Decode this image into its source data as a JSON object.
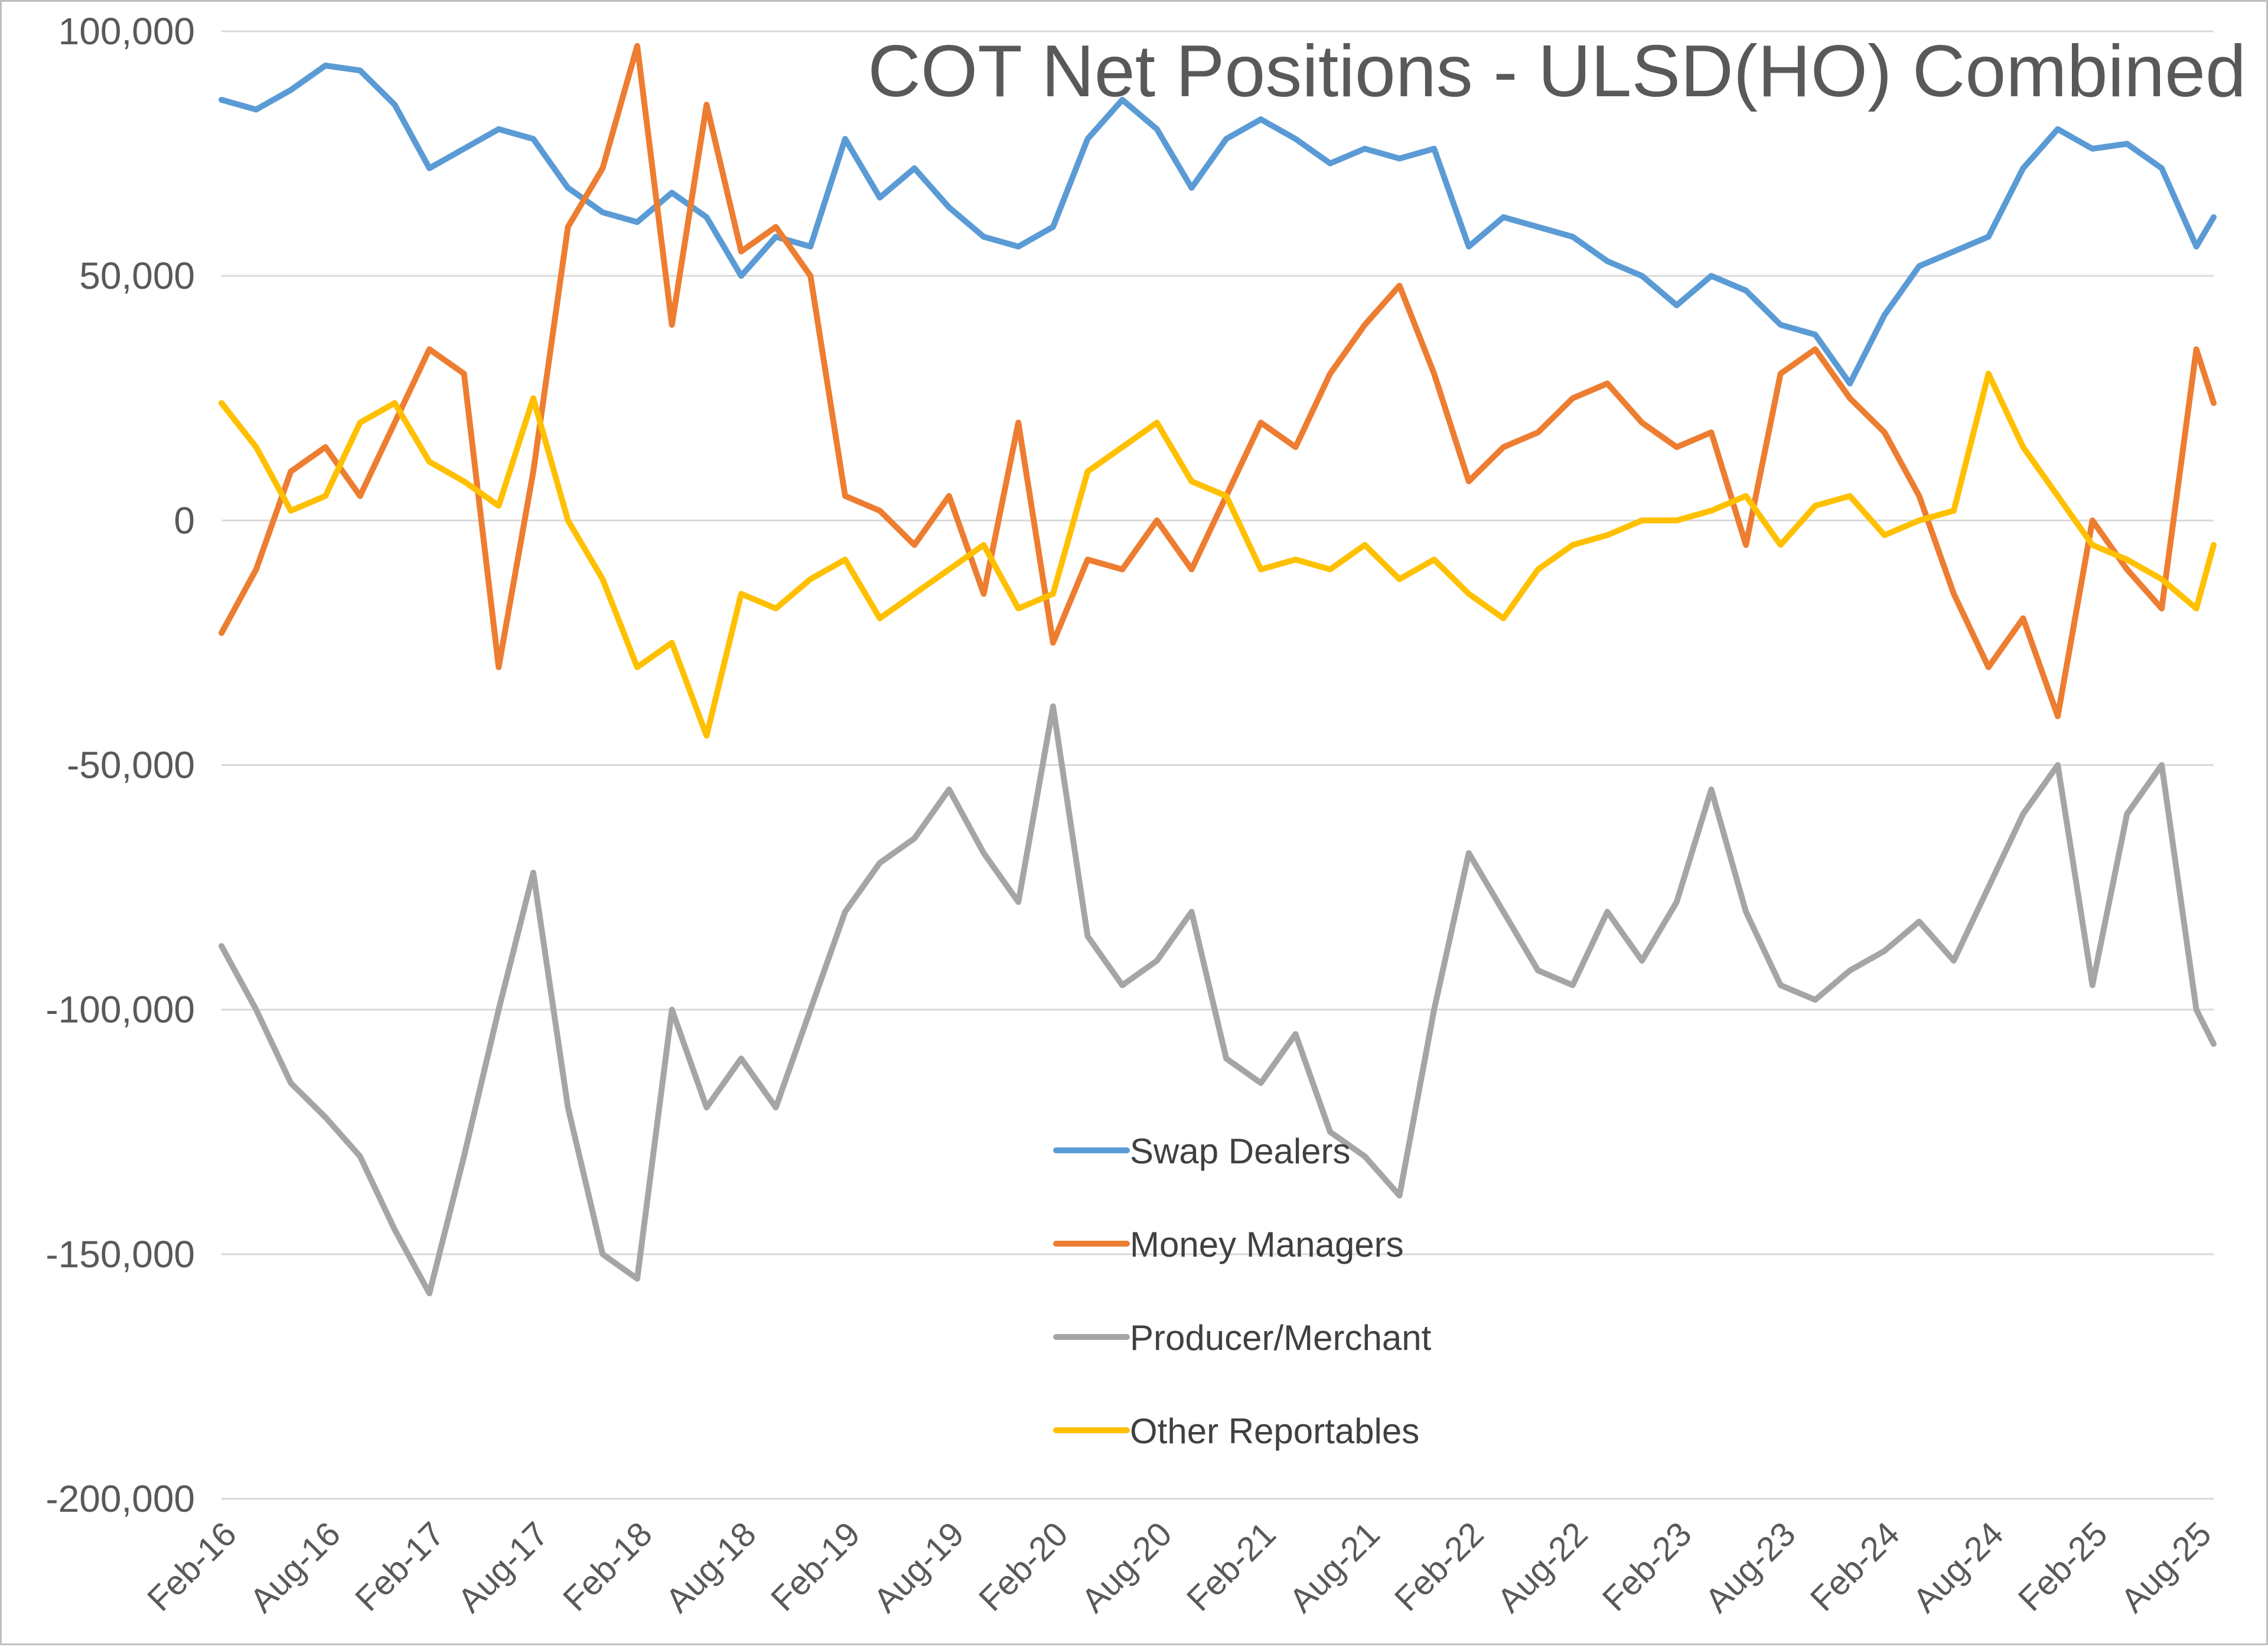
{
  "chart_data": {
    "type": "line",
    "title": "COT Net Positions - ULSD(HO) Combined",
    "xlabel": "",
    "ylabel": "",
    "ylim": [
      -200000,
      100000
    ],
    "y_ticks": [
      100000,
      50000,
      0,
      -50000,
      -100000,
      -150000,
      -200000
    ],
    "y_tick_labels": [
      "100,000",
      "50,000",
      "0",
      "-50,000",
      "-100,000",
      "-150,000",
      "-200,000"
    ],
    "x_start": "2016-02",
    "x_end": "2025-09",
    "x_ticks": [
      "2016-02",
      "2016-08",
      "2017-02",
      "2017-08",
      "2018-02",
      "2018-08",
      "2019-02",
      "2019-08",
      "2020-02",
      "2020-08",
      "2021-02",
      "2021-08",
      "2022-02",
      "2022-08",
      "2023-02",
      "2023-08",
      "2024-02",
      "2024-08",
      "2025-02",
      "2025-08"
    ],
    "x_tick_labels": [
      "Feb-16",
      "Aug-16",
      "Feb-17",
      "Aug-17",
      "Feb-18",
      "Aug-18",
      "Feb-19",
      "Aug-19",
      "Feb-20",
      "Aug-20",
      "Feb-21",
      "Aug-21",
      "Feb-22",
      "Aug-22",
      "Feb-23",
      "Aug-23",
      "Feb-24",
      "Aug-24",
      "Feb-25",
      "Aug-25"
    ],
    "grid": true,
    "legend_position": "center-bottom",
    "series": [
      {
        "name": "Swap Dealers",
        "color": "#5B9BD5",
        "x": [
          "2016-02",
          "2016-04",
          "2016-06",
          "2016-08",
          "2016-10",
          "2016-12",
          "2017-02",
          "2017-04",
          "2017-06",
          "2017-08",
          "2017-10",
          "2017-12",
          "2018-02",
          "2018-04",
          "2018-06",
          "2018-08",
          "2018-10",
          "2018-12",
          "2019-02",
          "2019-04",
          "2019-06",
          "2019-08",
          "2019-10",
          "2019-12",
          "2020-02",
          "2020-04",
          "2020-06",
          "2020-08",
          "2020-10",
          "2020-12",
          "2021-02",
          "2021-04",
          "2021-06",
          "2021-08",
          "2021-10",
          "2021-12",
          "2022-02",
          "2022-04",
          "2022-06",
          "2022-08",
          "2022-10",
          "2022-12",
          "2023-02",
          "2023-04",
          "2023-06",
          "2023-08",
          "2023-10",
          "2023-12",
          "2024-02",
          "2024-04",
          "2024-06",
          "2024-08",
          "2024-10",
          "2024-12",
          "2025-02",
          "2025-04",
          "2025-06",
          "2025-08",
          "2025-09"
        ],
        "values": [
          86000,
          84000,
          88000,
          93000,
          92000,
          85000,
          72000,
          76000,
          80000,
          78000,
          68000,
          63000,
          61000,
          67000,
          62000,
          50000,
          58000,
          56000,
          78000,
          66000,
          72000,
          64000,
          58000,
          56000,
          60000,
          78000,
          86000,
          80000,
          68000,
          78000,
          82000,
          78000,
          73000,
          76000,
          74000,
          76000,
          56000,
          62000,
          60000,
          58000,
          53000,
          50000,
          44000,
          50000,
          47000,
          40000,
          38000,
          28000,
          42000,
          52000,
          55000,
          58000,
          72000,
          80000,
          76000,
          77000,
          72000,
          56000,
          62000
        ]
      },
      {
        "name": "Money Managers",
        "color": "#ED7D31",
        "x": [
          "2016-02",
          "2016-04",
          "2016-06",
          "2016-08",
          "2016-10",
          "2016-12",
          "2017-02",
          "2017-04",
          "2017-06",
          "2017-08",
          "2017-10",
          "2017-12",
          "2018-02",
          "2018-04",
          "2018-06",
          "2018-08",
          "2018-10",
          "2018-12",
          "2019-02",
          "2019-04",
          "2019-06",
          "2019-08",
          "2019-10",
          "2019-12",
          "2020-02",
          "2020-04",
          "2020-06",
          "2020-08",
          "2020-10",
          "2020-12",
          "2021-02",
          "2021-04",
          "2021-06",
          "2021-08",
          "2021-10",
          "2021-12",
          "2022-02",
          "2022-04",
          "2022-06",
          "2022-08",
          "2022-10",
          "2022-12",
          "2023-02",
          "2023-04",
          "2023-06",
          "2023-08",
          "2023-10",
          "2023-12",
          "2024-02",
          "2024-04",
          "2024-06",
          "2024-08",
          "2024-10",
          "2024-12",
          "2025-02",
          "2025-04",
          "2025-06",
          "2025-08",
          "2025-09"
        ],
        "values": [
          -23000,
          -10000,
          10000,
          15000,
          5000,
          20000,
          35000,
          30000,
          -30000,
          10000,
          60000,
          72000,
          97000,
          40000,
          85000,
          55000,
          60000,
          50000,
          5000,
          2000,
          -5000,
          5000,
          -15000,
          20000,
          -25000,
          -8000,
          -10000,
          0,
          -10000,
          5000,
          20000,
          15000,
          30000,
          40000,
          48000,
          30000,
          8000,
          15000,
          18000,
          25000,
          28000,
          20000,
          15000,
          18000,
          -5000,
          30000,
          35000,
          25000,
          18000,
          5000,
          -15000,
          -30000,
          -20000,
          -40000,
          0,
          -10000,
          -18000,
          35000,
          24000
        ]
      },
      {
        "name": "Producer/Merchant",
        "color": "#A5A5A5",
        "x": [
          "2016-02",
          "2016-04",
          "2016-06",
          "2016-08",
          "2016-10",
          "2016-12",
          "2017-02",
          "2017-04",
          "2017-06",
          "2017-08",
          "2017-10",
          "2017-12",
          "2018-02",
          "2018-04",
          "2018-06",
          "2018-08",
          "2018-10",
          "2018-12",
          "2019-02",
          "2019-04",
          "2019-06",
          "2019-08",
          "2019-10",
          "2019-12",
          "2020-02",
          "2020-04",
          "2020-06",
          "2020-08",
          "2020-10",
          "2020-12",
          "2021-02",
          "2021-04",
          "2021-06",
          "2021-08",
          "2021-10",
          "2021-12",
          "2022-02",
          "2022-04",
          "2022-06",
          "2022-08",
          "2022-10",
          "2022-12",
          "2023-02",
          "2023-04",
          "2023-06",
          "2023-08",
          "2023-10",
          "2023-12",
          "2024-02",
          "2024-04",
          "2024-06",
          "2024-08",
          "2024-10",
          "2024-12",
          "2025-02",
          "2025-04",
          "2025-06",
          "2025-08",
          "2025-09"
        ],
        "values": [
          -87000,
          -100000,
          -115000,
          -122000,
          -130000,
          -145000,
          -158000,
          -130000,
          -100000,
          -72000,
          -120000,
          -150000,
          -155000,
          -100000,
          -120000,
          -110000,
          -120000,
          -100000,
          -80000,
          -70000,
          -65000,
          -55000,
          -68000,
          -78000,
          -38000,
          -85000,
          -95000,
          -90000,
          -80000,
          -110000,
          -115000,
          -105000,
          -125000,
          -130000,
          -138000,
          -100000,
          -68000,
          -80000,
          -92000,
          -95000,
          -80000,
          -90000,
          -78000,
          -55000,
          -80000,
          -95000,
          -98000,
          -92000,
          -88000,
          -82000,
          -90000,
          -75000,
          -60000,
          -50000,
          -95000,
          -60000,
          -50000,
          -100000,
          -107000
        ]
      },
      {
        "name": "Other Reportables",
        "color": "#FFC000",
        "x": [
          "2016-02",
          "2016-04",
          "2016-06",
          "2016-08",
          "2016-10",
          "2016-12",
          "2017-02",
          "2017-04",
          "2017-06",
          "2017-08",
          "2017-10",
          "2017-12",
          "2018-02",
          "2018-04",
          "2018-06",
          "2018-08",
          "2018-10",
          "2018-12",
          "2019-02",
          "2019-04",
          "2019-06",
          "2019-08",
          "2019-10",
          "2019-12",
          "2020-02",
          "2020-04",
          "2020-06",
          "2020-08",
          "2020-10",
          "2020-12",
          "2021-02",
          "2021-04",
          "2021-06",
          "2021-08",
          "2021-10",
          "2021-12",
          "2022-02",
          "2022-04",
          "2022-06",
          "2022-08",
          "2022-10",
          "2022-12",
          "2023-02",
          "2023-04",
          "2023-06",
          "2023-08",
          "2023-10",
          "2023-12",
          "2024-02",
          "2024-04",
          "2024-06",
          "2024-08",
          "2024-10",
          "2024-12",
          "2025-02",
          "2025-04",
          "2025-06",
          "2025-08",
          "2025-09"
        ],
        "values": [
          24000,
          15000,
          2000,
          5000,
          20000,
          24000,
          12000,
          8000,
          3000,
          25000,
          0,
          -12000,
          -30000,
          -25000,
          -44000,
          -15000,
          -18000,
          -12000,
          -8000,
          -20000,
          -15000,
          -10000,
          -5000,
          -18000,
          -15000,
          10000,
          15000,
          20000,
          8000,
          5000,
          -10000,
          -8000,
          -10000,
          -5000,
          -12000,
          -8000,
          -15000,
          -20000,
          -10000,
          -5000,
          -3000,
          0,
          0,
          2000,
          5000,
          -5000,
          3000,
          5000,
          -3000,
          0,
          2000,
          30000,
          15000,
          5000,
          -5000,
          -8000,
          -12000,
          -18000,
          -5000
        ]
      }
    ]
  }
}
